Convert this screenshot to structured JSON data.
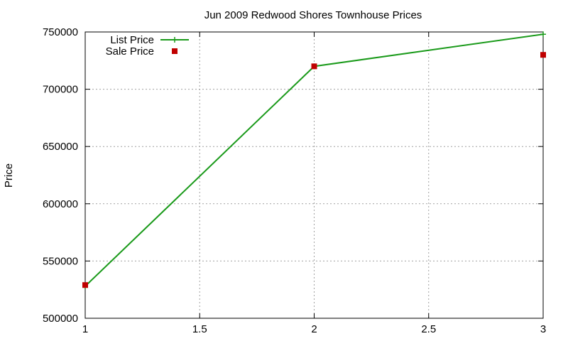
{
  "chart_data": {
    "type": "line",
    "title": "Jun 2009 Redwood Shores Townhouse Prices",
    "xlabel": "",
    "ylabel": "Price",
    "xlim": [
      1,
      3
    ],
    "ylim": [
      500000,
      750000
    ],
    "x_ticks": [
      "1",
      "1.5",
      "2",
      "2.5",
      "3"
    ],
    "y_ticks": [
      "500000",
      "550000",
      "600000",
      "650000",
      "700000",
      "750000"
    ],
    "grid": true,
    "legend_position": "top-left",
    "series": [
      {
        "name": "List Price",
        "style": "line-with-plus",
        "color": "#1a9a1a",
        "x": [
          1,
          2,
          3
        ],
        "y": [
          528000,
          720000,
          748000
        ]
      },
      {
        "name": "Sale Price",
        "style": "square-points",
        "color": "#c00000",
        "x": [
          1,
          2,
          3
        ],
        "y": [
          529000,
          720000,
          730000
        ]
      }
    ]
  }
}
